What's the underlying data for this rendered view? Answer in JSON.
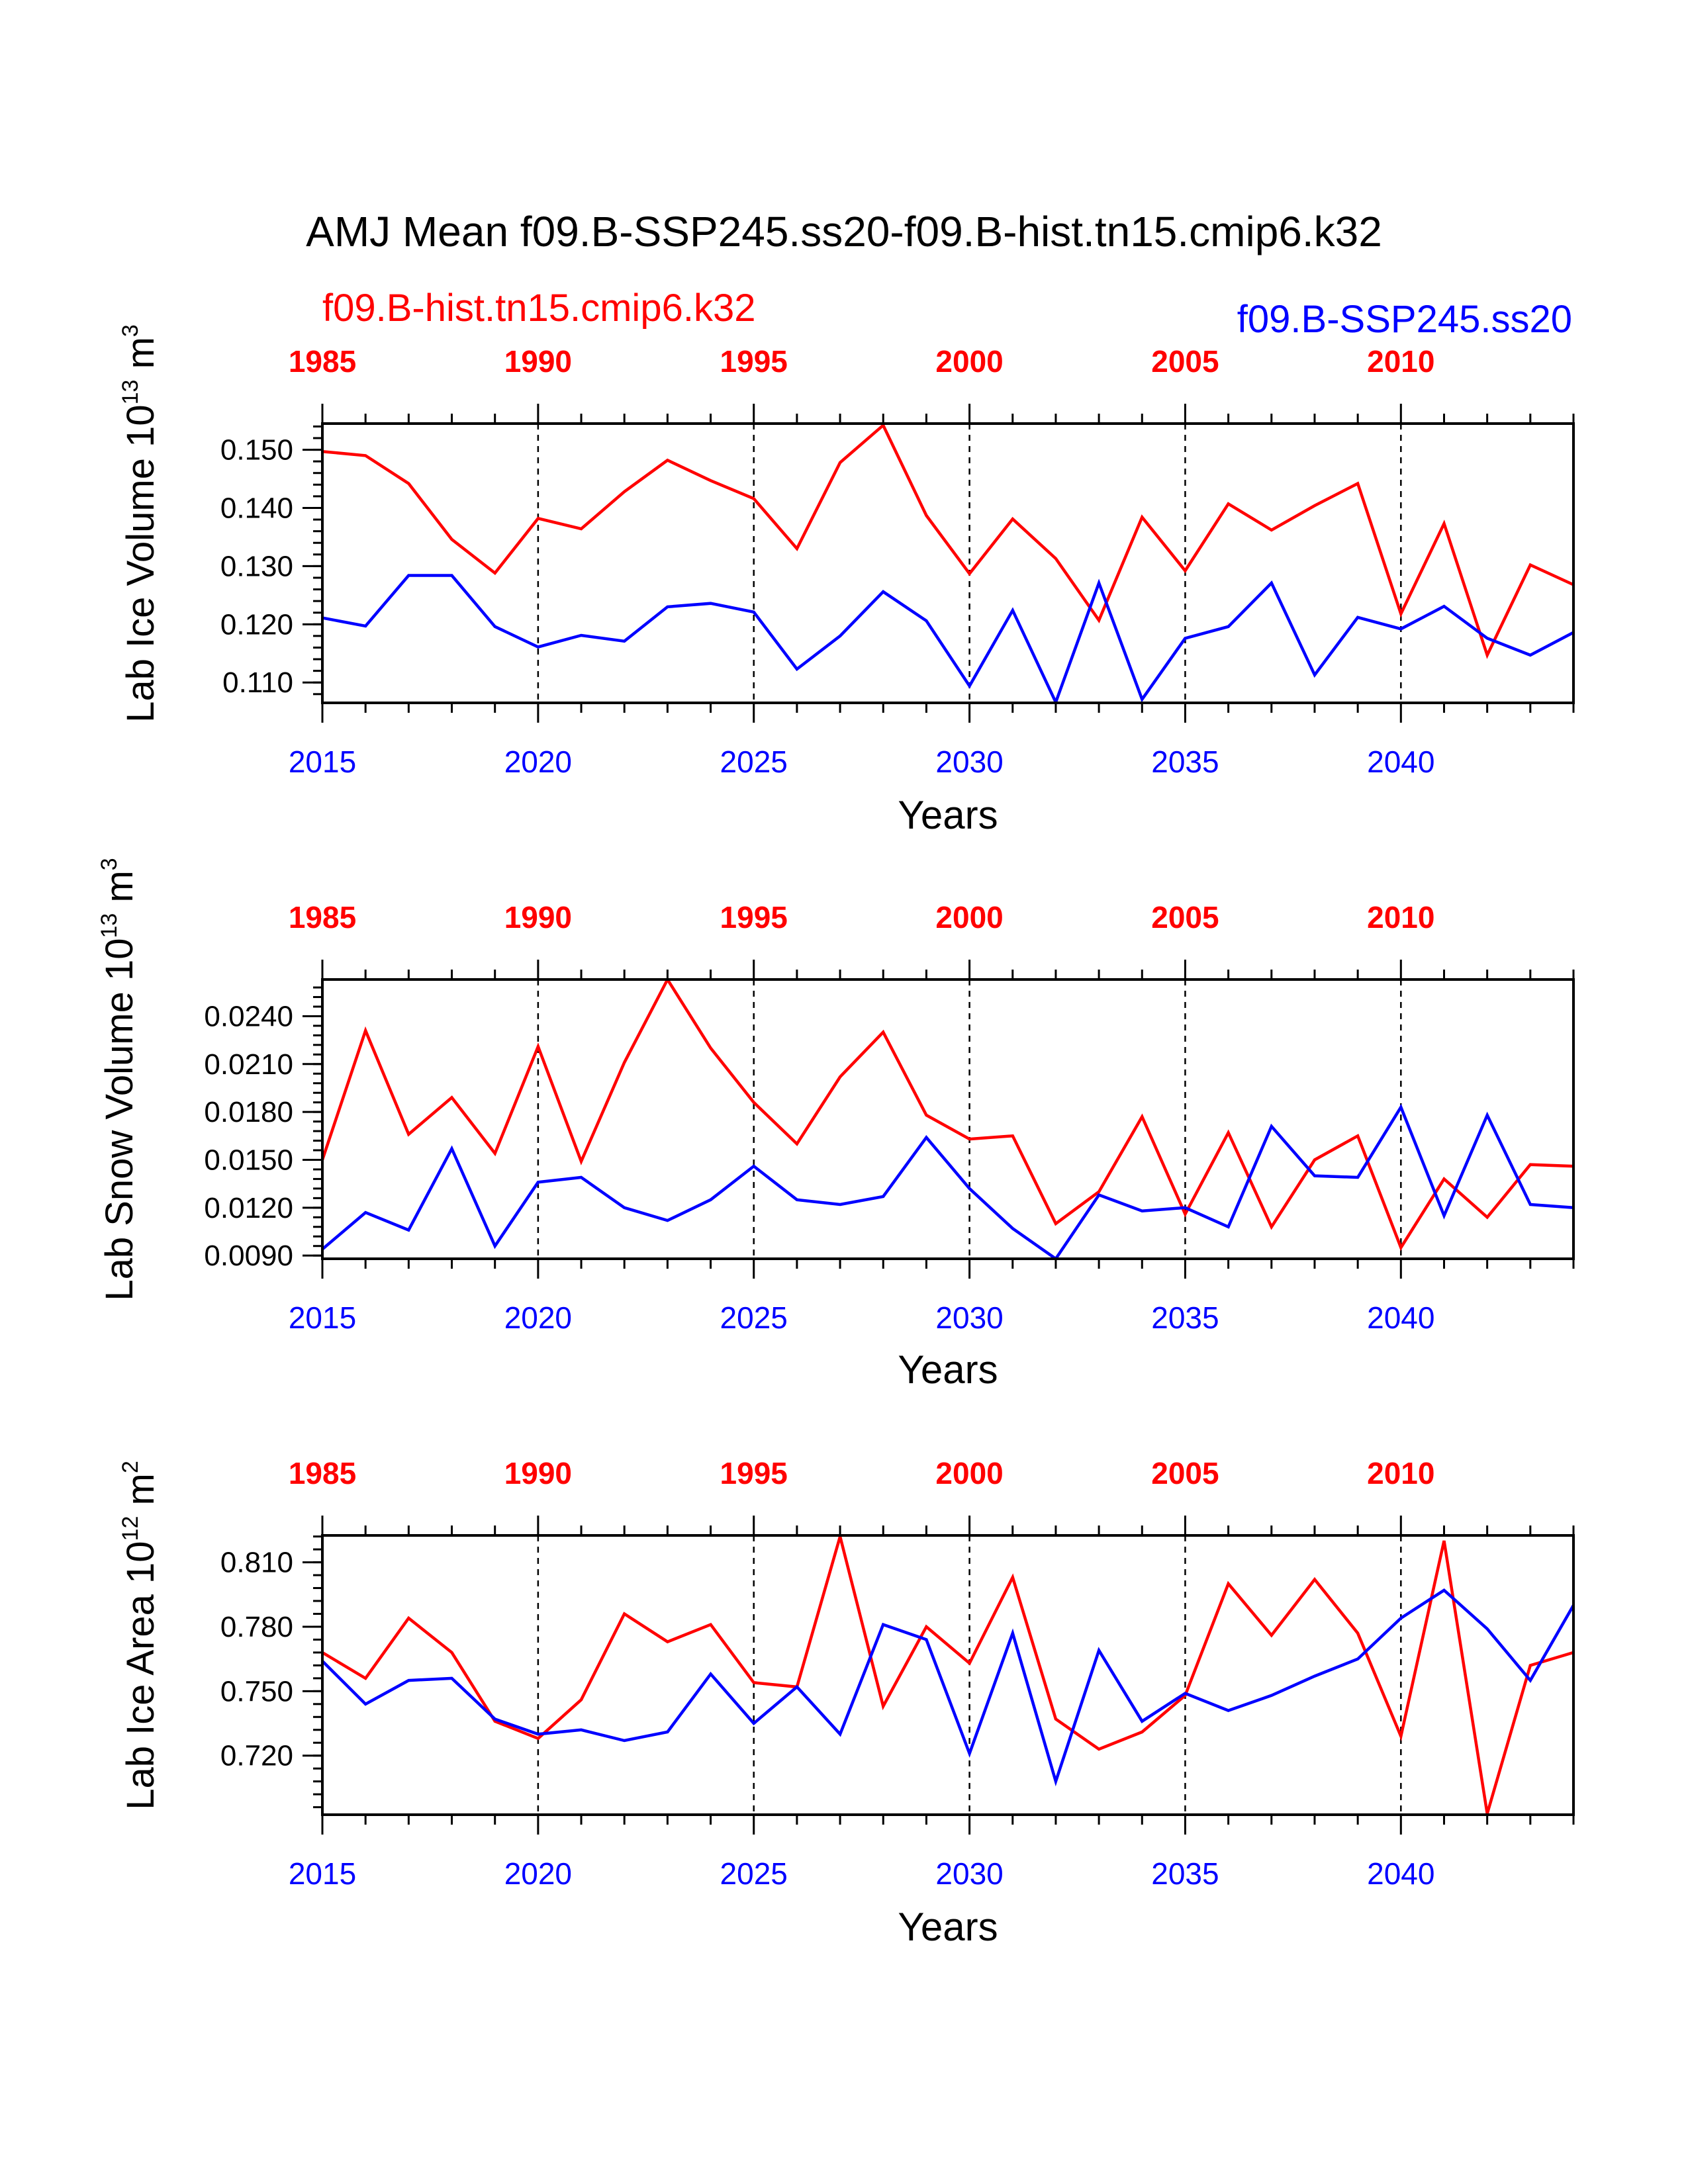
{
  "title": "AMJ Mean f09.B-SSP245.ss20-f09.B-hist.tn15.cmip6.k32",
  "legend": {
    "red": "f09.B-hist.tn15.cmip6.k32",
    "blue": "f09.B-SSP245.ss20"
  },
  "colors": {
    "red": "#ff0000",
    "blue": "#0000ff",
    "axis": "#000000"
  },
  "chart_data": [
    {
      "type": "line",
      "ylabel": {
        "text": "Lab Ice Volume 10",
        "exp": "13",
        "unit": " m",
        "unit_exp": "3"
      },
      "xlabel": "Years",
      "x_bottom": {
        "range": [
          2015,
          2044
        ],
        "ticks": [
          "2015",
          "2020",
          "2025",
          "2030",
          "2035",
          "2040"
        ]
      },
      "x_top": {
        "range": [
          1985,
          2014
        ],
        "ticks": [
          "1985",
          "1990",
          "1995",
          "2000",
          "2005",
          "2010"
        ]
      },
      "ylim": [
        0.1065,
        0.1545
      ],
      "yticks": [
        0.11,
        0.12,
        0.13,
        0.14,
        0.15
      ],
      "ytick_labels": [
        "0.110",
        "0.120",
        "0.130",
        "0.140",
        "0.150"
      ],
      "series": [
        {
          "name": "f09.B-hist.tn15.cmip6.k32",
          "color": "red",
          "values": [
            0.1497,
            0.149,
            0.1442,
            0.1346,
            0.1288,
            0.1382,
            0.1364,
            0.1428,
            0.1482,
            0.1447,
            0.1416,
            0.133,
            0.1478,
            0.1542,
            0.1387,
            0.1287,
            0.1381,
            0.1313,
            0.1207,
            0.1384,
            0.1292,
            0.1407,
            0.1362,
            0.1404,
            0.1442,
            0.1218,
            0.1373,
            0.1147,
            0.1302,
            0.1268
          ]
        },
        {
          "name": "f09.B-SSP245.ss20",
          "color": "blue",
          "values": [
            0.1211,
            0.1197,
            0.1284,
            0.1284,
            0.1196,
            0.1161,
            0.1181,
            0.1171,
            0.123,
            0.1236,
            0.1221,
            0.1123,
            0.118,
            0.1256,
            0.1206,
            0.1094,
            0.1224,
            0.1066,
            0.1271,
            0.1071,
            0.1176,
            0.1196,
            0.1271,
            0.1113,
            0.1212,
            0.1192,
            0.1231,
            0.1176,
            0.1147,
            0.1186
          ]
        }
      ]
    },
    {
      "type": "line",
      "ylabel": {
        "text": "Lab Snow Volume 10",
        "exp": "13",
        "unit": " m",
        "unit_exp": "3"
      },
      "xlabel": "Years",
      "x_bottom": {
        "range": [
          2015,
          2044
        ],
        "ticks": [
          "2015",
          "2020",
          "2025",
          "2030",
          "2035",
          "2040"
        ]
      },
      "x_top": {
        "range": [
          1985,
          2014
        ],
        "ticks": [
          "1985",
          "1990",
          "1995",
          "2000",
          "2005",
          "2010"
        ]
      },
      "ylim": [
        0.0088,
        0.0263
      ],
      "yticks": [
        0.009,
        0.012,
        0.015,
        0.018,
        0.021,
        0.024
      ],
      "ytick_labels": [
        "0.0090",
        "0.0120",
        "0.0150",
        "0.0180",
        "0.0210",
        "0.0240"
      ],
      "series": [
        {
          "name": "f09.B-hist.tn15.cmip6.k32",
          "color": "red",
          "values": [
            0.015,
            0.0231,
            0.0166,
            0.0189,
            0.0154,
            0.0221,
            0.0149,
            0.0211,
            0.0263,
            0.022,
            0.0186,
            0.016,
            0.0202,
            0.023,
            0.0178,
            0.0163,
            0.0165,
            0.011,
            0.013,
            0.0177,
            0.0116,
            0.0167,
            0.0108,
            0.015,
            0.0165,
            0.0095,
            0.0138,
            0.0114,
            0.0147,
            0.0146
          ]
        },
        {
          "name": "f09.B-SSP245.ss20",
          "color": "blue",
          "values": [
            0.0094,
            0.0117,
            0.0106,
            0.0157,
            0.0096,
            0.0136,
            0.0139,
            0.012,
            0.0112,
            0.0125,
            0.0146,
            0.0125,
            0.0122,
            0.0127,
            0.0164,
            0.0132,
            0.0107,
            0.0088,
            0.0128,
            0.0118,
            0.012,
            0.0108,
            0.0171,
            0.014,
            0.0139,
            0.0183,
            0.0115,
            0.0178,
            0.0122,
            0.012
          ]
        }
      ]
    },
    {
      "type": "line",
      "ylabel": {
        "text": "Lab Ice Area 10",
        "exp": "12",
        "unit": " m",
        "unit_exp": "2"
      },
      "xlabel": "Years",
      "x_bottom": {
        "range": [
          2015,
          2044
        ],
        "ticks": [
          "2015",
          "2020",
          "2025",
          "2030",
          "2035",
          "2040"
        ]
      },
      "x_top": {
        "range": [
          1985,
          2014
        ],
        "ticks": [
          "1985",
          "1990",
          "1995",
          "2000",
          "2005",
          "2010"
        ]
      },
      "ylim": [
        0.6925,
        0.8225
      ],
      "yticks": [
        0.72,
        0.75,
        0.78,
        0.81
      ],
      "ytick_labels": [
        "0.720",
        "0.750",
        "0.780",
        "0.810"
      ],
      "series": [
        {
          "name": "f09.B-hist.tn15.cmip6.k32",
          "color": "red",
          "values": [
            0.768,
            0.756,
            0.784,
            0.768,
            0.736,
            0.728,
            0.746,
            0.786,
            0.773,
            0.781,
            0.754,
            0.752,
            0.822,
            0.743,
            0.78,
            0.763,
            0.803,
            0.737,
            0.723,
            0.731,
            0.748,
            0.8,
            0.776,
            0.802,
            0.777,
            0.729,
            0.82,
            0.693,
            0.762,
            0.768
          ]
        },
        {
          "name": "f09.B-SSP245.ss20",
          "color": "blue",
          "values": [
            0.764,
            0.744,
            0.755,
            0.756,
            0.737,
            0.73,
            0.732,
            0.727,
            0.731,
            0.758,
            0.735,
            0.752,
            0.73,
            0.781,
            0.774,
            0.721,
            0.777,
            0.708,
            0.769,
            0.736,
            0.749,
            0.741,
            0.748,
            0.757,
            0.765,
            0.784,
            0.797,
            0.779,
            0.755,
            0.79
          ]
        }
      ]
    }
  ]
}
